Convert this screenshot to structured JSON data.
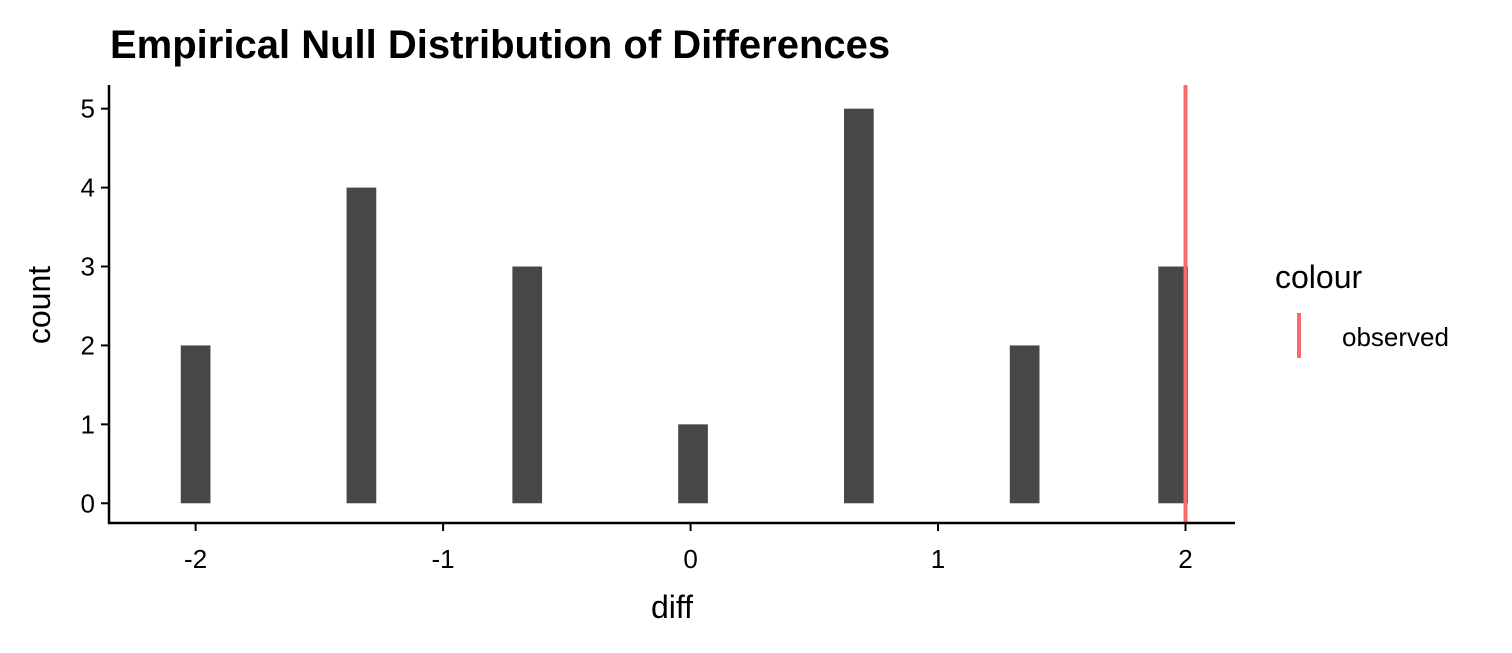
{
  "chart_data": {
    "type": "bar",
    "title": "Empirical Null Distribution of Differences",
    "xlabel": "diff",
    "ylabel": "count",
    "xlim": [
      -2.35,
      2.2
    ],
    "ylim": [
      -0.25,
      5.3
    ],
    "x_ticks": [
      -2,
      -1,
      0,
      1,
      2
    ],
    "x_tick_labels": [
      "-2",
      "-1",
      "0",
      "1",
      "2"
    ],
    "y_ticks": [
      0,
      1,
      2,
      3,
      4,
      5
    ],
    "y_tick_labels": [
      "0",
      "1",
      "2",
      "3",
      "4",
      "5"
    ],
    "bins": [
      {
        "x": -2.0,
        "count": 2
      },
      {
        "x": -1.33,
        "count": 4
      },
      {
        "x": -0.66,
        "count": 3
      },
      {
        "x": 0.01,
        "count": 1
      },
      {
        "x": 0.68,
        "count": 5
      },
      {
        "x": 1.35,
        "count": 2
      },
      {
        "x": 1.95,
        "count": 3
      }
    ],
    "bin_width": 0.12,
    "bar_color": "#474747",
    "reference_line": {
      "x": 2.0,
      "label": "observed",
      "color": "#F8696B"
    },
    "legend": {
      "title": "colour",
      "entries": [
        "observed"
      ],
      "position": "right"
    },
    "grid": false
  }
}
